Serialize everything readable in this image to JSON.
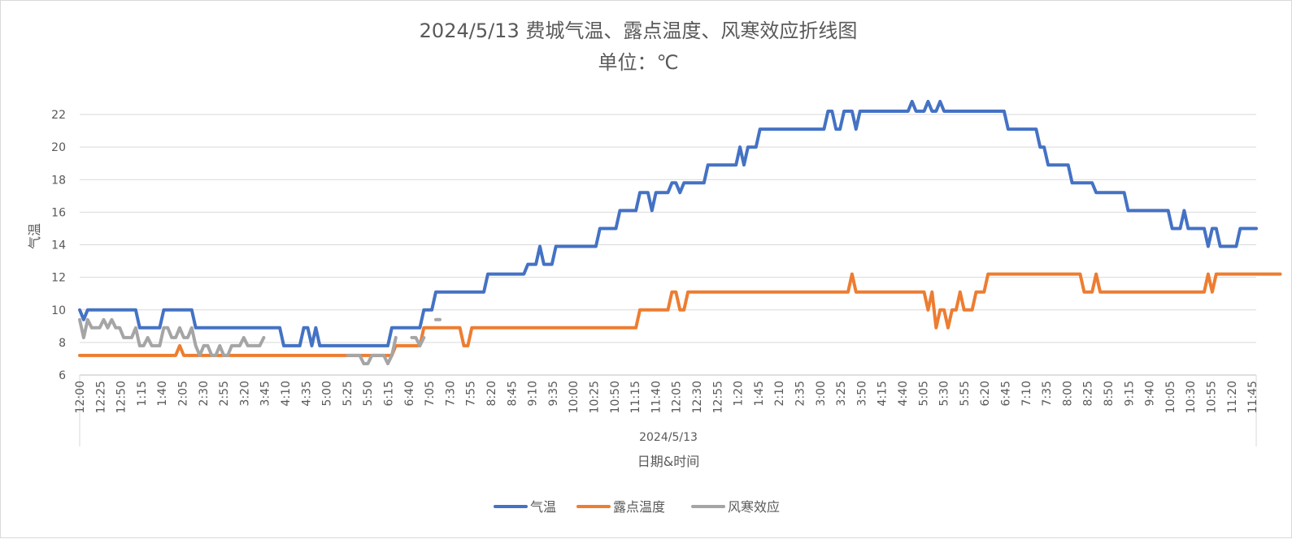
{
  "chart_data": {
    "type": "line",
    "title": "2024/5/13 费城气温、露点温度、风寒效应折线图",
    "subtitle": "单位：℃",
    "ylabel": "气温",
    "xlabel": "日期&时间",
    "date_group_label": "2024/5/13",
    "ylim": [
      6,
      23
    ],
    "yticks": [
      6,
      8,
      10,
      12,
      14,
      16,
      18,
      20,
      22
    ],
    "grid": true,
    "legend_position": "bottom",
    "x_tick_labels": [
      "12:00",
      "12:25",
      "12:50",
      "1:15",
      "1:40",
      "2:05",
      "2:30",
      "2:55",
      "3:20",
      "3:45",
      "4:10",
      "4:35",
      "5:00",
      "5:25",
      "5:50",
      "6:15",
      "6:40",
      "7:05",
      "7:30",
      "7:55",
      "8:20",
      "8:45",
      "9:10",
      "9:35",
      "10:00",
      "10:25",
      "10:50",
      "11:15",
      "11:40",
      "12:05",
      "12:30",
      "12:55",
      "1:20",
      "1:45",
      "2:10",
      "2:35",
      "3:00",
      "3:25",
      "3:50",
      "4:15",
      "4:40",
      "5:05",
      "5:30",
      "5:55",
      "6:20",
      "6:45",
      "7:10",
      "7:35",
      "8:00",
      "8:25",
      "8:50",
      "9:15",
      "9:40",
      "10:05",
      "10:30",
      "10:55",
      "11:20",
      "11:45"
    ],
    "series": [
      {
        "name": "气温",
        "color": "#4472C4",
        "values": [
          10.0,
          9.4,
          10.0,
          10.0,
          10.0,
          10.0,
          10.0,
          10.0,
          10.0,
          10.0,
          10.0,
          10.0,
          10.0,
          10.0,
          10.0,
          8.9,
          8.9,
          8.9,
          8.9,
          8.9,
          8.9,
          10.0,
          10.0,
          10.0,
          10.0,
          10.0,
          10.0,
          10.0,
          10.0,
          8.9,
          8.9,
          8.9,
          8.9,
          8.9,
          8.9,
          8.9,
          8.9,
          8.9,
          8.9,
          8.9,
          8.9,
          8.9,
          8.9,
          8.9,
          8.9,
          8.9,
          8.9,
          8.9,
          8.9,
          8.9,
          8.9,
          7.8,
          7.8,
          7.8,
          7.8,
          7.8,
          8.9,
          8.9,
          7.8,
          8.9,
          7.8,
          7.8,
          7.8,
          7.8,
          7.8,
          7.8,
          7.8,
          7.8,
          7.8,
          7.8,
          7.8,
          7.8,
          7.8,
          7.8,
          7.8,
          7.8,
          7.8,
          7.8,
          8.9,
          8.9,
          8.9,
          8.9,
          8.9,
          8.9,
          8.9,
          8.9,
          10.0,
          10.0,
          10.0,
          11.1,
          11.1,
          11.1,
          11.1,
          11.1,
          11.1,
          11.1,
          11.1,
          11.1,
          11.1,
          11.1,
          11.1,
          11.1,
          12.2,
          12.2,
          12.2,
          12.2,
          12.2,
          12.2,
          12.2,
          12.2,
          12.2,
          12.2,
          12.8,
          12.8,
          12.8,
          13.9,
          12.8,
          12.8,
          12.8,
          13.9,
          13.9,
          13.9,
          13.9,
          13.9,
          13.9,
          13.9,
          13.9,
          13.9,
          13.9,
          13.9,
          15.0,
          15.0,
          15.0,
          15.0,
          15.0,
          16.1,
          16.1,
          16.1,
          16.1,
          16.1,
          17.2,
          17.2,
          17.2,
          16.1,
          17.2,
          17.2,
          17.2,
          17.2,
          17.8,
          17.8,
          17.2,
          17.8,
          17.8,
          17.8,
          17.8,
          17.8,
          17.8,
          18.9,
          18.9,
          18.9,
          18.9,
          18.9,
          18.9,
          18.9,
          18.9,
          20.0,
          18.9,
          20.0,
          20.0,
          20.0,
          21.1,
          21.1,
          21.1,
          21.1,
          21.1,
          21.1,
          21.1,
          21.1,
          21.1,
          21.1,
          21.1,
          21.1,
          21.1,
          21.1,
          21.1,
          21.1,
          21.1,
          22.2,
          22.2,
          21.1,
          21.1,
          22.2,
          22.2,
          22.2,
          21.1,
          22.2,
          22.2,
          22.2,
          22.2,
          22.2,
          22.2,
          22.2,
          22.2,
          22.2,
          22.2,
          22.2,
          22.2,
          22.2,
          22.8,
          22.2,
          22.2,
          22.2,
          22.8,
          22.2,
          22.2,
          22.8,
          22.2,
          22.2,
          22.2,
          22.2,
          22.2,
          22.2,
          22.2,
          22.2,
          22.2,
          22.2,
          22.2,
          22.2,
          22.2,
          22.2,
          22.2,
          22.2,
          21.1,
          21.1,
          21.1,
          21.1,
          21.1,
          21.1,
          21.1,
          21.1,
          20.0,
          20.0,
          18.9,
          18.9,
          18.9,
          18.9,
          18.9,
          18.9,
          17.8,
          17.8,
          17.8,
          17.8,
          17.8,
          17.8,
          17.2,
          17.2,
          17.2,
          17.2,
          17.2,
          17.2,
          17.2,
          17.2,
          16.1,
          16.1,
          16.1,
          16.1,
          16.1,
          16.1,
          16.1,
          16.1,
          16.1,
          16.1,
          16.1,
          15.0,
          15.0,
          15.0,
          16.1,
          15.0,
          15.0,
          15.0,
          15.0,
          15.0,
          13.9,
          15.0,
          15.0,
          13.9,
          13.9,
          13.9,
          13.9,
          13.9,
          15.0,
          15.0,
          15.0,
          15.0,
          15.0
        ]
      },
      {
        "name": "露点温度",
        "color": "#ED7D31",
        "values": [
          7.2,
          7.2,
          7.2,
          7.2,
          7.2,
          7.2,
          7.2,
          7.2,
          7.2,
          7.2,
          7.2,
          7.2,
          7.2,
          7.2,
          7.2,
          7.2,
          7.2,
          7.2,
          7.2,
          7.2,
          7.2,
          7.2,
          7.2,
          7.2,
          7.2,
          7.8,
          7.2,
          7.2,
          7.2,
          7.2,
          7.2,
          7.2,
          7.2,
          7.2,
          7.2,
          7.2,
          7.2,
          7.2,
          7.2,
          7.2,
          7.2,
          7.2,
          7.2,
          7.2,
          7.2,
          7.2,
          7.2,
          7.2,
          7.2,
          7.2,
          7.2,
          7.2,
          7.2,
          7.2,
          7.2,
          7.2,
          7.2,
          7.2,
          7.2,
          7.2,
          7.2,
          7.2,
          7.2,
          7.2,
          7.2,
          7.2,
          7.2,
          7.2,
          7.2,
          7.2,
          7.2,
          7.2,
          7.2,
          7.2,
          7.2,
          7.2,
          7.2,
          7.2,
          7.2,
          7.8,
          7.8,
          7.8,
          7.8,
          7.8,
          7.8,
          7.8,
          8.9,
          8.9,
          8.9,
          8.9,
          8.9,
          8.9,
          8.9,
          8.9,
          8.9,
          8.9,
          7.8,
          7.8,
          8.9,
          8.9,
          8.9,
          8.9,
          8.9,
          8.9,
          8.9,
          8.9,
          8.9,
          8.9,
          8.9,
          8.9,
          8.9,
          8.9,
          8.9,
          8.9,
          8.9,
          8.9,
          8.9,
          8.9,
          8.9,
          8.9,
          8.9,
          8.9,
          8.9,
          8.9,
          8.9,
          8.9,
          8.9,
          8.9,
          8.9,
          8.9,
          8.9,
          8.9,
          8.9,
          8.9,
          8.9,
          8.9,
          8.9,
          8.9,
          8.9,
          8.9,
          10.0,
          10.0,
          10.0,
          10.0,
          10.0,
          10.0,
          10.0,
          10.0,
          11.1,
          11.1,
          10.0,
          10.0,
          11.1,
          11.1,
          11.1,
          11.1,
          11.1,
          11.1,
          11.1,
          11.1,
          11.1,
          11.1,
          11.1,
          11.1,
          11.1,
          11.1,
          11.1,
          11.1,
          11.1,
          11.1,
          11.1,
          11.1,
          11.1,
          11.1,
          11.1,
          11.1,
          11.1,
          11.1,
          11.1,
          11.1,
          11.1,
          11.1,
          11.1,
          11.1,
          11.1,
          11.1,
          11.1,
          11.1,
          11.1,
          11.1,
          11.1,
          11.1,
          11.1,
          12.2,
          11.1,
          11.1,
          11.1,
          11.1,
          11.1,
          11.1,
          11.1,
          11.1,
          11.1,
          11.1,
          11.1,
          11.1,
          11.1,
          11.1,
          11.1,
          11.1,
          11.1,
          11.1,
          10.0,
          11.1,
          8.9,
          10.0,
          10.0,
          8.9,
          10.0,
          10.0,
          11.1,
          10.0,
          10.0,
          10.0,
          11.1,
          11.1,
          11.1,
          12.2,
          12.2,
          12.2,
          12.2,
          12.2,
          12.2,
          12.2,
          12.2,
          12.2,
          12.2,
          12.2,
          12.2,
          12.2,
          12.2,
          12.2,
          12.2,
          12.2,
          12.2,
          12.2,
          12.2,
          12.2,
          12.2,
          12.2,
          12.2,
          11.1,
          11.1,
          11.1,
          12.2,
          11.1,
          11.1,
          11.1,
          11.1,
          11.1,
          11.1,
          11.1,
          11.1,
          11.1,
          11.1,
          11.1,
          11.1,
          11.1,
          11.1,
          11.1,
          11.1,
          11.1,
          11.1,
          11.1,
          11.1,
          11.1,
          11.1,
          11.1,
          11.1,
          11.1,
          11.1,
          11.1,
          12.2,
          11.1,
          12.2,
          12.2,
          12.2,
          12.2,
          12.2,
          12.2,
          12.2,
          12.2,
          12.2,
          12.2,
          12.2,
          12.2,
          12.2,
          12.2,
          12.2,
          12.2,
          12.2
        ]
      },
      {
        "name": "风寒效应",
        "color": "#A5A5A5",
        "values": [
          9.4,
          8.3,
          9.4,
          8.9,
          8.9,
          8.9,
          9.4,
          8.9,
          9.4,
          8.9,
          8.9,
          8.3,
          8.3,
          8.3,
          8.9,
          7.8,
          7.8,
          8.3,
          7.8,
          7.8,
          7.8,
          8.9,
          8.9,
          8.3,
          8.3,
          8.9,
          8.3,
          8.3,
          8.9,
          7.8,
          7.2,
          7.8,
          7.8,
          7.2,
          7.2,
          7.8,
          7.2,
          7.2,
          7.8,
          7.8,
          7.8,
          8.3,
          7.8,
          7.8,
          7.8,
          7.8,
          8.3,
          null,
          null,
          null,
          null,
          null,
          null,
          null,
          null,
          null,
          null,
          null,
          null,
          null,
          null,
          null,
          null,
          null,
          null,
          null,
          null,
          7.2,
          7.2,
          7.2,
          7.2,
          6.7,
          6.7,
          7.2,
          7.2,
          7.2,
          7.2,
          6.7,
          7.2,
          8.3,
          null,
          null,
          null,
          8.3,
          8.3,
          7.8,
          8.3,
          null,
          null,
          9.4,
          9.4
        ]
      }
    ]
  }
}
